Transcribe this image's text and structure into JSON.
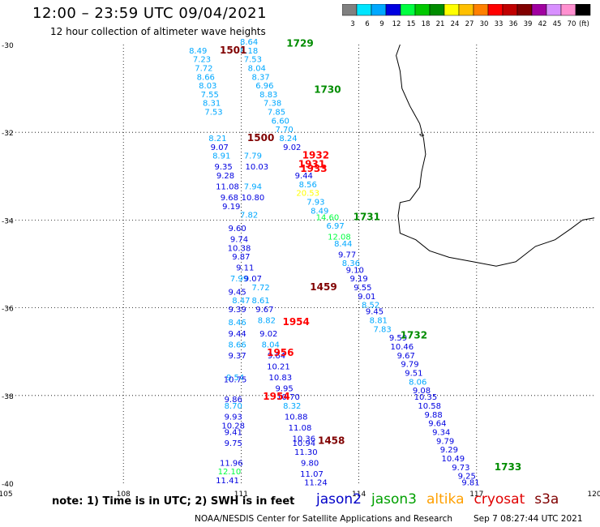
{
  "header": {
    "title": "12:00 – 23:59 UTC 09/04/2021",
    "subtitle": "12 hour collection of altimeter wave heights"
  },
  "color_scale": {
    "unit": "(ft)",
    "bins": [
      {
        "label": "3",
        "color": "#808080"
      },
      {
        "label": "6",
        "color": "#00e5ff"
      },
      {
        "label": "9",
        "color": "#00a8ff"
      },
      {
        "label": "12",
        "color": "#0000e0"
      },
      {
        "label": "15",
        "color": "#00ff40"
      },
      {
        "label": "18",
        "color": "#00c800"
      },
      {
        "label": "21",
        "color": "#008c00"
      },
      {
        "label": "24",
        "color": "#ffff00"
      },
      {
        "label": "27",
        "color": "#ffc000"
      },
      {
        "label": "30",
        "color": "#ff8000"
      },
      {
        "label": "33",
        "color": "#ff0000"
      },
      {
        "label": "36",
        "color": "#c00000"
      },
      {
        "label": "39",
        "color": "#800000"
      },
      {
        "label": "42",
        "color": "#a000a0"
      },
      {
        "label": "45",
        "color": "#d890ff"
      },
      {
        "label": "70",
        "color": "#ff90d0"
      },
      {
        "label": "",
        "color": "#000000"
      }
    ]
  },
  "map": {
    "lat_labels": [
      "-30",
      "-32",
      "-34",
      "-36",
      "-38",
      "-40"
    ],
    "lon_labels": [
      "105",
      "108",
      "111",
      "114",
      "117",
      "120"
    ],
    "pass_times": [
      {
        "text": "1729",
        "color": "#008c00",
        "lon": 112.5,
        "lat": -30.05
      },
      {
        "text": "1501",
        "color": "#800000",
        "lon": 110.8,
        "lat": -30.2
      },
      {
        "text": "1730",
        "color": "#008c00",
        "lon": 113.2,
        "lat": -31.1
      },
      {
        "text": "1500",
        "color": "#800000",
        "lon": 111.5,
        "lat": -32.2
      },
      {
        "text": "1932",
        "color": "#ff0000",
        "lon": 112.9,
        "lat": -32.6
      },
      {
        "text": "1931",
        "color": "#ff0000",
        "lon": 112.8,
        "lat": -32.8
      },
      {
        "text": "1933",
        "color": "#ff0000",
        "lon": 112.85,
        "lat": -32.9
      },
      {
        "text": "1731",
        "color": "#008c00",
        "lon": 114.2,
        "lat": -34.0
      },
      {
        "text": "1459",
        "color": "#800000",
        "lon": 113.1,
        "lat": -35.6
      },
      {
        "text": "1954",
        "color": "#ff0000",
        "lon": 112.4,
        "lat": -36.4
      },
      {
        "text": "1732",
        "color": "#008c00",
        "lon": 115.4,
        "lat": -36.7
      },
      {
        "text": "1956",
        "color": "#ff0000",
        "lon": 112.0,
        "lat": -37.1
      },
      {
        "text": "1954",
        "color": "#ff0000",
        "lon": 111.9,
        "lat": -38.1
      },
      {
        "text": "1458",
        "color": "#800000",
        "lon": 113.3,
        "lat": -39.1
      },
      {
        "text": "1733",
        "color": "#008c00",
        "lon": 117.8,
        "lat": -39.7
      }
    ],
    "observations": [
      {
        "text": "8.64",
        "color": "#00a8ff",
        "lon": 111.2,
        "lat": -30.0
      },
      {
        "text": "8.49",
        "color": "#00a8ff",
        "lon": 109.9,
        "lat": -30.2
      },
      {
        "text": "8.18",
        "color": "#00a8ff",
        "lon": 111.2,
        "lat": -30.2
      },
      {
        "text": "7.23",
        "color": "#00a8ff",
        "lon": 110.0,
        "lat": -30.4
      },
      {
        "text": "7.53",
        "color": "#00a8ff",
        "lon": 111.3,
        "lat": -30.4
      },
      {
        "text": "7.72",
        "color": "#00a8ff",
        "lon": 110.05,
        "lat": -30.6
      },
      {
        "text": "8.04",
        "color": "#00a8ff",
        "lon": 111.4,
        "lat": -30.6
      },
      {
        "text": "8.66",
        "color": "#00a8ff",
        "lon": 110.1,
        "lat": -30.8
      },
      {
        "text": "8.37",
        "color": "#00a8ff",
        "lon": 111.5,
        "lat": -30.8
      },
      {
        "text": "8.03",
        "color": "#00a8ff",
        "lon": 110.15,
        "lat": -31.0
      },
      {
        "text": "6.96",
        "color": "#00a8ff",
        "lon": 111.6,
        "lat": -31.0
      },
      {
        "text": "7.55",
        "color": "#00a8ff",
        "lon": 110.2,
        "lat": -31.2
      },
      {
        "text": "8.83",
        "color": "#00a8ff",
        "lon": 111.7,
        "lat": -31.2
      },
      {
        "text": "8.31",
        "color": "#00a8ff",
        "lon": 110.25,
        "lat": -31.4
      },
      {
        "text": "7.38",
        "color": "#00a8ff",
        "lon": 111.8,
        "lat": -31.4
      },
      {
        "text": "7.53",
        "color": "#00a8ff",
        "lon": 110.3,
        "lat": -31.6
      },
      {
        "text": "7.85",
        "color": "#00a8ff",
        "lon": 111.9,
        "lat": -31.6
      },
      {
        "text": "6.60",
        "color": "#00a8ff",
        "lon": 112.0,
        "lat": -31.8
      },
      {
        "text": "7.70",
        "color": "#00a8ff",
        "lon": 112.1,
        "lat": -32.0
      },
      {
        "text": "8.21",
        "color": "#00a8ff",
        "lon": 110.4,
        "lat": -32.2
      },
      {
        "text": "8.24",
        "color": "#00a8ff",
        "lon": 112.2,
        "lat": -32.2
      },
      {
        "text": "9.07",
        "color": "#0000e0",
        "lon": 110.45,
        "lat": -32.4
      },
      {
        "text": "9.02",
        "color": "#0000e0",
        "lon": 112.3,
        "lat": -32.4
      },
      {
        "text": "8.91",
        "color": "#00a8ff",
        "lon": 110.5,
        "lat": -32.6
      },
      {
        "text": "7.79",
        "color": "#00a8ff",
        "lon": 111.3,
        "lat": -32.6
      },
      {
        "text": "9.35",
        "color": "#0000e0",
        "lon": 110.55,
        "lat": -32.85
      },
      {
        "text": "10.03",
        "color": "#0000e0",
        "lon": 111.4,
        "lat": -32.85
      },
      {
        "text": "9.44",
        "color": "#0000e0",
        "lon": 112.6,
        "lat": -33.05
      },
      {
        "text": "9.28",
        "color": "#0000e0",
        "lon": 110.6,
        "lat": -33.05
      },
      {
        "text": "8.56",
        "color": "#00a8ff",
        "lon": 112.7,
        "lat": -33.25
      },
      {
        "text": "11.08",
        "color": "#0000e0",
        "lon": 110.65,
        "lat": -33.3
      },
      {
        "text": "7.94",
        "color": "#00a8ff",
        "lon": 111.3,
        "lat": -33.3
      },
      {
        "text": "20.53",
        "color": "#ffff00",
        "lon": 112.7,
        "lat": -33.45
      },
      {
        "text": "9.68",
        "color": "#0000e0",
        "lon": 110.7,
        "lat": -33.55
      },
      {
        "text": "10.80",
        "color": "#0000e0",
        "lon": 111.3,
        "lat": -33.55
      },
      {
        "text": "7.93",
        "color": "#00a8ff",
        "lon": 112.9,
        "lat": -33.65
      },
      {
        "text": "9.19",
        "color": "#0000e0",
        "lon": 110.75,
        "lat": -33.75
      },
      {
        "text": "8.49",
        "color": "#00a8ff",
        "lon": 113.0,
        "lat": -33.85
      },
      {
        "text": "7.82",
        "color": "#00a8ff",
        "lon": 111.2,
        "lat": -33.95
      },
      {
        "text": "14.60",
        "color": "#00ff40",
        "lon": 113.2,
        "lat": -34.0
      },
      {
        "text": "6.97",
        "color": "#00a8ff",
        "lon": 113.4,
        "lat": -34.2
      },
      {
        "text": "9.60",
        "color": "#0000e0",
        "lon": 110.9,
        "lat": -34.25
      },
      {
        "text": "12.08",
        "color": "#00ff40",
        "lon": 113.5,
        "lat": -34.45
      },
      {
        "text": "9.74",
        "color": "#0000e0",
        "lon": 110.95,
        "lat": -34.5
      },
      {
        "text": "8.44",
        "color": "#00a8ff",
        "lon": 113.6,
        "lat": -34.6
      },
      {
        "text": "10.38",
        "color": "#0000e0",
        "lon": 110.95,
        "lat": -34.7
      },
      {
        "text": "9.77",
        "color": "#0000e0",
        "lon": 113.7,
        "lat": -34.85
      },
      {
        "text": "9.87",
        "color": "#0000e0",
        "lon": 111.0,
        "lat": -34.9
      },
      {
        "text": "8.36",
        "color": "#00a8ff",
        "lon": 113.8,
        "lat": -35.05
      },
      {
        "text": "9.11",
        "color": "#0000e0",
        "lon": 111.1,
        "lat": -35.15
      },
      {
        "text": "9.10",
        "color": "#0000e0",
        "lon": 113.9,
        "lat": -35.2
      },
      {
        "text": "7.99",
        "color": "#00a8ff",
        "lon": 110.95,
        "lat": -35.4
      },
      {
        "text": "9.07",
        "color": "#0000e0",
        "lon": 111.3,
        "lat": -35.4
      },
      {
        "text": "9.19",
        "color": "#0000e0",
        "lon": 114.0,
        "lat": -35.4
      },
      {
        "text": "7.72",
        "color": "#00a8ff",
        "lon": 111.5,
        "lat": -35.6
      },
      {
        "text": "9.55",
        "color": "#0000e0",
        "lon": 114.1,
        "lat": -35.6
      },
      {
        "text": "9.45",
        "color": "#0000e0",
        "lon": 110.9,
        "lat": -35.7
      },
      {
        "text": "9.01",
        "color": "#0000e0",
        "lon": 114.2,
        "lat": -35.8
      },
      {
        "text": "8.47",
        "color": "#00a8ff",
        "lon": 111.0,
        "lat": -35.9
      },
      {
        "text": "8.61",
        "color": "#00a8ff",
        "lon": 111.5,
        "lat": -35.9
      },
      {
        "text": "8.52",
        "color": "#00a8ff",
        "lon": 114.3,
        "lat": -36.0
      },
      {
        "text": "9.39",
        "color": "#0000e0",
        "lon": 110.9,
        "lat": -36.1
      },
      {
        "text": "9.67",
        "color": "#0000e0",
        "lon": 111.6,
        "lat": -36.1
      },
      {
        "text": "9.45",
        "color": "#0000e0",
        "lon": 114.4,
        "lat": -36.15
      },
      {
        "text": "8.46",
        "color": "#00a8ff",
        "lon": 110.9,
        "lat": -36.4
      },
      {
        "text": "8.82",
        "color": "#00a8ff",
        "lon": 111.65,
        "lat": -36.35
      },
      {
        "text": "8.81",
        "color": "#00a8ff",
        "lon": 114.5,
        "lat": -36.35
      },
      {
        "text": "9.44",
        "color": "#0000e0",
        "lon": 110.9,
        "lat": -36.65
      },
      {
        "text": "9.02",
        "color": "#0000e0",
        "lon": 111.7,
        "lat": -36.65
      },
      {
        "text": "7.83",
        "color": "#00a8ff",
        "lon": 114.6,
        "lat": -36.55
      },
      {
        "text": "9.59",
        "color": "#0000e0",
        "lon": 115.0,
        "lat": -36.75
      },
      {
        "text": "8.66",
        "color": "#00a8ff",
        "lon": 110.9,
        "lat": -36.9
      },
      {
        "text": "8.04",
        "color": "#00a8ff",
        "lon": 111.75,
        "lat": -36.9
      },
      {
        "text": "10.46",
        "color": "#0000e0",
        "lon": 115.1,
        "lat": -36.95
      },
      {
        "text": "9.37",
        "color": "#0000e0",
        "lon": 110.9,
        "lat": -37.15
      },
      {
        "text": "9.64",
        "color": "#0000e0",
        "lon": 111.9,
        "lat": -37.15
      },
      {
        "text": "9.67",
        "color": "#0000e0",
        "lon": 115.2,
        "lat": -37.15
      },
      {
        "text": "10.21",
        "color": "#0000e0",
        "lon": 111.95,
        "lat": -37.4
      },
      {
        "text": "9.79",
        "color": "#0000e0",
        "lon": 115.3,
        "lat": -37.35
      },
      {
        "text": "9.54",
        "color": "#00a8ff",
        "lon": 110.85,
        "lat": -37.65
      },
      {
        "text": "10.75",
        "color": "#0000e0",
        "lon": 110.85,
        "lat": -37.7
      },
      {
        "text": "10.83",
        "color": "#0000e0",
        "lon": 112.0,
        "lat": -37.65
      },
      {
        "text": "9.51",
        "color": "#0000e0",
        "lon": 115.4,
        "lat": -37.55
      },
      {
        "text": "8.06",
        "color": "#00a8ff",
        "lon": 115.5,
        "lat": -37.75
      },
      {
        "text": "9.95",
        "color": "#0000e0",
        "lon": 112.1,
        "lat": -37.9
      },
      {
        "text": "9.08",
        "color": "#0000e0",
        "lon": 115.6,
        "lat": -37.95
      },
      {
        "text": "10.70",
        "color": "#0000e0",
        "lon": 112.2,
        "lat": -38.1
      },
      {
        "text": "10.35",
        "color": "#0000e0",
        "lon": 115.7,
        "lat": -38.1
      },
      {
        "text": "9.86",
        "color": "#0000e0",
        "lon": 110.8,
        "lat": -38.15
      },
      {
        "text": "8.70",
        "color": "#00a8ff",
        "lon": 110.8,
        "lat": -38.3
      },
      {
        "text": "8.32",
        "color": "#00a8ff",
        "lon": 112.3,
        "lat": -38.3
      },
      {
        "text": "10.58",
        "color": "#0000e0",
        "lon": 115.8,
        "lat": -38.3
      },
      {
        "text": "9.93",
        "color": "#0000e0",
        "lon": 110.8,
        "lat": -38.55
      },
      {
        "text": "10.88",
        "color": "#0000e0",
        "lon": 112.4,
        "lat": -38.55
      },
      {
        "text": "9.88",
        "color": "#0000e0",
        "lon": 115.9,
        "lat": -38.5
      },
      {
        "text": "10.28",
        "color": "#0000e0",
        "lon": 110.8,
        "lat": -38.75
      },
      {
        "text": "9.64",
        "color": "#0000e0",
        "lon": 116.0,
        "lat": -38.7
      },
      {
        "text": "9.41",
        "color": "#0000e0",
        "lon": 110.8,
        "lat": -38.9
      },
      {
        "text": "11.08",
        "color": "#0000e0",
        "lon": 112.5,
        "lat": -38.8
      },
      {
        "text": "9.34",
        "color": "#0000e0",
        "lon": 116.1,
        "lat": -38.9
      },
      {
        "text": "9.75",
        "color": "#0000e0",
        "lon": 110.8,
        "lat": -39.15
      },
      {
        "text": "10.36",
        "color": "#0000e0",
        "lon": 112.6,
        "lat": -39.05
      },
      {
        "text": "10.94",
        "color": "#0000e0",
        "lon": 112.6,
        "lat": -39.15
      },
      {
        "text": "9.79",
        "color": "#0000e0",
        "lon": 116.2,
        "lat": -39.1
      },
      {
        "text": "11.30",
        "color": "#0000e0",
        "lon": 112.65,
        "lat": -39.35
      },
      {
        "text": "9.29",
        "color": "#0000e0",
        "lon": 116.3,
        "lat": -39.3
      },
      {
        "text": "11.96",
        "color": "#0000e0",
        "lon": 110.75,
        "lat": -39.6
      },
      {
        "text": "9.80",
        "color": "#0000e0",
        "lon": 112.75,
        "lat": -39.6
      },
      {
        "text": "10.49",
        "color": "#0000e0",
        "lon": 116.4,
        "lat": -39.5
      },
      {
        "text": "9.73",
        "color": "#0000e0",
        "lon": 116.6,
        "lat": -39.7
      },
      {
        "text": "12.10",
        "color": "#00ff40",
        "lon": 110.7,
        "lat": -39.8
      },
      {
        "text": "11.07",
        "color": "#0000e0",
        "lon": 112.8,
        "lat": -39.85
      },
      {
        "text": "9.25",
        "color": "#0000e0",
        "lon": 116.75,
        "lat": -39.9
      },
      {
        "text": "11.41",
        "color": "#0000e0",
        "lon": 110.65,
        "lat": -40.0
      },
      {
        "text": "11.24",
        "color": "#0000e0",
        "lon": 112.9,
        "lat": -40.05
      },
      {
        "text": "9.81",
        "color": "#0000e0",
        "lon": 116.85,
        "lat": -40.05
      }
    ]
  },
  "footer": {
    "note": "note:  1) Time is in UTC;  2) SWH is in feet",
    "satellites": [
      {
        "name": "jason2",
        "color": "#0000c8"
      },
      {
        "name": "jason3",
        "color": "#00a000"
      },
      {
        "name": "altika",
        "color": "#ffa000"
      },
      {
        "name": "cryosat",
        "color": "#e00000"
      },
      {
        "name": "s3a",
        "color": "#800000"
      }
    ],
    "organization": "NOAA/NESDIS Center for Satellite Applications and Research",
    "timestamp": "Sep  7 08:27:44 UTC 2021"
  }
}
